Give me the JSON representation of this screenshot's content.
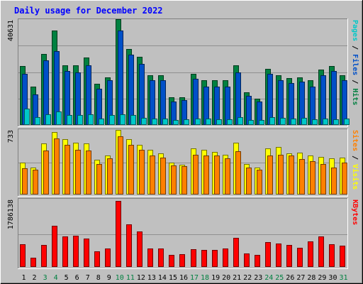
{
  "chart_data": {
    "type": "bar",
    "title": "Daily usage for December 2022",
    "days": [
      "1",
      "2",
      "3",
      "4",
      "5",
      "6",
      "7",
      "8",
      "9",
      "10",
      "11",
      "12",
      "13",
      "14",
      "15",
      "16",
      "17",
      "18",
      "19",
      "20",
      "21",
      "22",
      "23",
      "24",
      "25",
      "26",
      "27",
      "28",
      "29",
      "30",
      "31"
    ],
    "weekend_days": [
      "3",
      "4",
      "10",
      "11",
      "17",
      "18",
      "24",
      "25",
      "31"
    ],
    "panels": [
      {
        "id": "hits",
        "ymax": 40631,
        "ymax_label": "40631",
        "right_label": [
          {
            "text": "Pages",
            "color": "#00c8c8"
          },
          {
            "text": " / ",
            "color": "#000000"
          },
          {
            "text": "Files",
            "color": "#0050c8"
          },
          {
            "text": " / ",
            "color": "#000000"
          },
          {
            "text": "Hits",
            "color": "#008040"
          }
        ],
        "series": [
          {
            "name": "Hits",
            "color": "#008040",
            "values": [
              22500,
              14700,
              27200,
              36200,
              23000,
              23000,
              25800,
              15700,
              18400,
              40631,
              29200,
              26200,
              19100,
              19100,
              10600,
              10600,
              19600,
              17300,
              17300,
              17300,
              23000,
              12500,
              10200,
              21600,
              19100,
              17900,
              18400,
              17300,
              21300,
              22600,
              19100
            ]
          },
          {
            "name": "Files",
            "color": "#0050c8",
            "values": [
              19600,
              11700,
              24800,
              28400,
              20600,
              20100,
              23000,
              14000,
              17100,
              36200,
              26900,
              23500,
              17300,
              17300,
              9100,
              9500,
              17800,
              14800,
              14800,
              14800,
              20100,
              11200,
              9100,
              19600,
              17100,
              16100,
              16600,
              14800,
              19100,
              20600,
              17100
            ]
          },
          {
            "name": "Pages",
            "color": "#00c8c8",
            "values": [
              6400,
              3100,
              4200,
              5100,
              3700,
              3700,
              4100,
              2500,
              3800,
              4100,
              3700,
              2600,
              2500,
              2400,
              2000,
              2300,
              2500,
              2500,
              2300,
              2300,
              2900,
              1900,
              1800,
              3100,
              2800,
              2500,
              2600,
              2200,
              2500,
              2300,
              2500
            ]
          }
        ]
      },
      {
        "id": "visits",
        "ymax": 733,
        "ymax_label": "733",
        "right_label": [
          {
            "text": "Sites",
            "color": "#ff8000"
          },
          {
            "text": " / ",
            "color": "#000000"
          },
          {
            "text": "Visits",
            "color": "#ffff00"
          }
        ],
        "series": [
          {
            "name": "Visits",
            "color": "#ffff00",
            "values": [
              360,
              310,
              580,
              710,
              625,
              590,
              580,
              395,
              445,
              733,
              625,
              560,
              510,
              470,
              360,
              340,
              525,
              510,
              480,
              450,
              590,
              345,
              310,
              525,
              540,
              470,
              475,
              440,
              430,
              410,
              420
            ]
          },
          {
            "name": "Sites",
            "color": "#ff8000",
            "values": [
              300,
              280,
              500,
              640,
              560,
              510,
              500,
              350,
              410,
              660,
              560,
              510,
              440,
              420,
              330,
              320,
              450,
              440,
              440,
              410,
              490,
              310,
              280,
              440,
              450,
              440,
              400,
              380,
              350,
              310,
              360
            ]
          }
        ]
      },
      {
        "id": "kbytes",
        "ymax": 1786138,
        "ymax_label": "1786138",
        "right_label": [
          {
            "text": "KBytes",
            "color": "#ff0000"
          }
        ],
        "series": [
          {
            "name": "KBytes",
            "color": "#ff0000",
            "values": [
              615000,
              245000,
              600000,
              1105000,
              820000,
              840000,
              770000,
              430000,
              500000,
              1786138,
              1160000,
              955000,
              495000,
              500000,
              325000,
              340000,
              475000,
              465000,
              455000,
              500000,
              780000,
              370000,
              320000,
              665000,
              630000,
              600000,
              515000,
              695000,
              835000,
              605000,
              570000
            ]
          }
        ]
      }
    ]
  }
}
